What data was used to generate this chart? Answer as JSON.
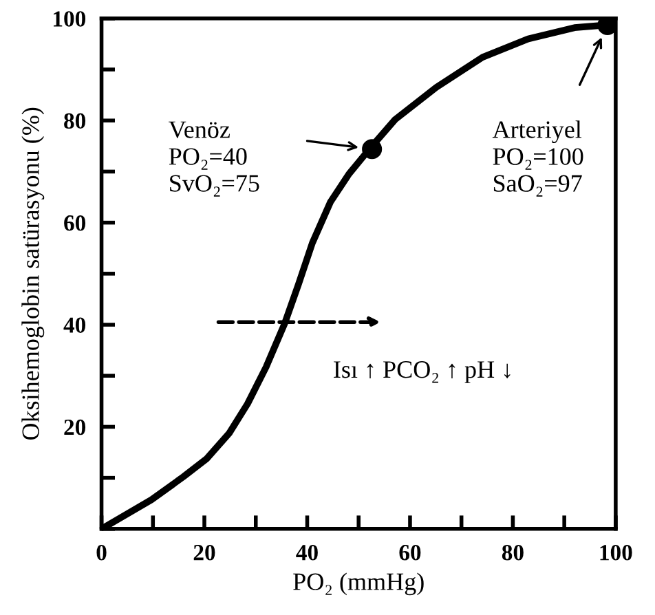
{
  "chart_data": {
    "type": "line",
    "xlabel": "PO₂ (mmHg)",
    "ylabel": "Oksihemoglobin satürasyonu (%)",
    "xlim": [
      0,
      100
    ],
    "ylim": [
      0,
      100
    ],
    "xticks": [
      0,
      {
        "value": 10,
        "label": null
      },
      20,
      {
        "value": 30,
        "label": null
      },
      40,
      {
        "value": 50,
        "label": null
      },
      60,
      {
        "value": 70,
        "label": null
      },
      80,
      {
        "value": 90,
        "label": null
      },
      100
    ],
    "yticks": [
      {
        "value": 0,
        "label": null
      },
      {
        "value": 10,
        "label": null
      },
      20,
      {
        "value": 30,
        "label": null
      },
      40,
      {
        "value": 50,
        "label": null
      },
      60,
      {
        "value": 70,
        "label": null
      },
      80,
      {
        "value": 90,
        "label": null
      },
      100
    ],
    "grid": false,
    "series": [
      {
        "color": "#000000",
        "marker": "none",
        "line_style": "solid",
        "x": [
          0,
          9.7,
          15.9,
          20.4,
          24.8,
          28.4,
          32,
          35.6,
          38.3,
          41,
          44.5,
          48.1,
          52.1,
          57.1,
          65.1,
          74.1,
          83,
          92,
          98.2
        ],
        "values": [
          0,
          5.7,
          10.2,
          13.7,
          18.7,
          24.5,
          31.7,
          40.2,
          47.9,
          56,
          64,
          69.5,
          74.4,
          80.2,
          86.5,
          92.4,
          96,
          98.2,
          98.7
        ]
      },
      {
        "type": "scatter",
        "color": "#000000",
        "marker": "circle",
        "x": [
          52.6,
          98.4
        ],
        "values": [
          74.4,
          98.7
        ]
      }
    ],
    "annotations": [
      "Venöz\nPO₂=40\nSvO₂=75",
      "Arteriyel\nPO₂=100\nSaO₂=97",
      "Isı ↑ PCO₂ ↑ pH ↓"
    ]
  }
}
